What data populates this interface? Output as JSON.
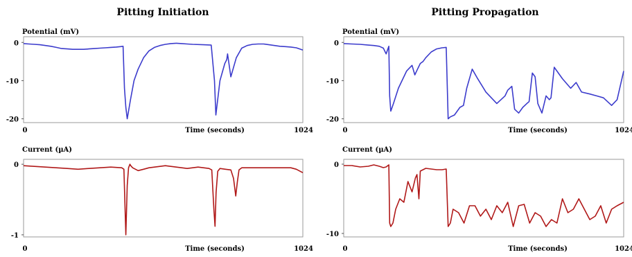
{
  "colors": {
    "potential": "#3b3bcc",
    "current": "#b01818",
    "frame": "#9a9a9a"
  },
  "groups": [
    {
      "title": "Pitting Initiation"
    },
    {
      "title": "Pitting Propagation"
    }
  ],
  "chart_data": [
    {
      "type": "line",
      "group": 0,
      "series_color": "potential",
      "title": "Potential (mV)",
      "xlabel": "Time (seconds)",
      "xlim": [
        0,
        1024
      ],
      "ylim": [
        -21,
        1.5
      ],
      "x_ticks": [
        "0",
        "1024"
      ],
      "y_ticks": [
        {
          "value": 0,
          "label": "0"
        },
        {
          "value": -10,
          "label": "-10"
        },
        {
          "value": -20,
          "label": "-20"
        }
      ],
      "series": [
        {
          "x": [
            0,
            20,
            40,
            60,
            80,
            100,
            120,
            140,
            160,
            180,
            200,
            220,
            240,
            260,
            280,
            300,
            320,
            340,
            355,
            365,
            370,
            375,
            380,
            392,
            405,
            420,
            440,
            460,
            480,
            500,
            520,
            540,
            560,
            580,
            600,
            620,
            660,
            688,
            700,
            705,
            720,
            738,
            745,
            748,
            760,
            780,
            800,
            820,
            840,
            860,
            880,
            900,
            920,
            940,
            960,
            980,
            1000,
            1024
          ],
          "y": [
            -0.3,
            -0.4,
            -0.5,
            -0.6,
            -0.8,
            -1.0,
            -1.3,
            -1.6,
            -1.7,
            -1.8,
            -1.8,
            -1.8,
            -1.7,
            -1.6,
            -1.5,
            -1.4,
            -1.3,
            -1.2,
            -1.1,
            -1.0,
            -12.0,
            -17.0,
            -20.0,
            -15.0,
            -10.0,
            -7.0,
            -4.0,
            -2.2,
            -1.3,
            -0.8,
            -0.5,
            -0.3,
            -0.2,
            -0.3,
            -0.4,
            -0.5,
            -0.6,
            -0.7,
            -10.0,
            -19.0,
            -10.0,
            -5.5,
            -4.5,
            -3.0,
            -9.0,
            -4.0,
            -1.5,
            -0.8,
            -0.5,
            -0.4,
            -0.4,
            -0.6,
            -0.8,
            -1.0,
            -1.1,
            -1.2,
            -1.4,
            -2.0
          ]
        }
      ]
    },
    {
      "type": "line",
      "group": 0,
      "series_color": "current",
      "title": "Current (µA)",
      "xlabel": "Time (seconds)",
      "xlim": [
        0,
        1024
      ],
      "ylim": [
        -1.03,
        0.07
      ],
      "x_ticks": [
        "0",
        "1024"
      ],
      "y_ticks": [
        {
          "value": 0,
          "label": "0"
        },
        {
          "value": -1,
          "label": "-1"
        }
      ],
      "series": [
        {
          "x": [
            0,
            40,
            80,
            120,
            160,
            200,
            240,
            280,
            320,
            360,
            368,
            375,
            380,
            385,
            390,
            393,
            400,
            420,
            440,
            460,
            480,
            500,
            520,
            540,
            560,
            580,
            600,
            620,
            640,
            660,
            680,
            690,
            698,
            702,
            706,
            712,
            720,
            740,
            760,
            770,
            778,
            784,
            790,
            800,
            820,
            840,
            860,
            880,
            900,
            920,
            940,
            960,
            980,
            1000,
            1024
          ],
          "y": [
            -0.02,
            -0.03,
            -0.04,
            -0.05,
            -0.06,
            -0.07,
            -0.06,
            -0.05,
            -0.04,
            -0.05,
            -0.07,
            -1.0,
            -0.3,
            -0.05,
            0.0,
            -0.02,
            -0.05,
            -0.09,
            -0.07,
            -0.05,
            -0.04,
            -0.03,
            -0.02,
            -0.03,
            -0.04,
            -0.05,
            -0.06,
            -0.05,
            -0.04,
            -0.05,
            -0.06,
            -0.08,
            -0.65,
            -0.88,
            -0.4,
            -0.1,
            -0.06,
            -0.07,
            -0.08,
            -0.2,
            -0.45,
            -0.25,
            -0.08,
            -0.05,
            -0.05,
            -0.05,
            -0.05,
            -0.05,
            -0.05,
            -0.05,
            -0.05,
            -0.05,
            -0.05,
            -0.07,
            -0.12
          ]
        }
      ]
    },
    {
      "type": "line",
      "group": 1,
      "series_color": "potential",
      "title": "Potential (mV)",
      "xlabel": "Time (seconds)",
      "xlim": [
        0,
        1024
      ],
      "ylim": [
        -21,
        1.5
      ],
      "x_ticks": [
        "0",
        "1024"
      ],
      "y_ticks": [
        {
          "value": 0,
          "label": "0"
        },
        {
          "value": -10,
          "label": "-10"
        },
        {
          "value": -20,
          "label": "-20"
        }
      ],
      "series": [
        {
          "x": [
            0,
            30,
            60,
            90,
            110,
            130,
            145,
            155,
            165,
            168,
            172,
            182,
            200,
            230,
            250,
            260,
            270,
            280,
            290,
            300,
            320,
            340,
            360,
            375,
            382,
            390,
            405,
            425,
            438,
            450,
            470,
            490,
            520,
            560,
            590,
            600,
            615,
            625,
            640,
            655,
            670,
            678,
            690,
            700,
            710,
            725,
            740,
            752,
            758,
            770,
            800,
            830,
            850,
            870,
            900,
            925,
            950,
            980,
            1000,
            1024
          ],
          "y": [
            -0.3,
            -0.4,
            -0.5,
            -0.7,
            -0.8,
            -1.0,
            -1.5,
            -3.0,
            -1.0,
            -14.0,
            -18.0,
            -16.0,
            -12.0,
            -7.5,
            -6.0,
            -8.5,
            -7.0,
            -5.5,
            -5.0,
            -4.0,
            -2.5,
            -1.7,
            -1.4,
            -1.3,
            -20.0,
            -19.5,
            -19.0,
            -17.0,
            -16.5,
            -12.0,
            -7.0,
            -9.5,
            -13.0,
            -16.0,
            -14.0,
            -12.5,
            -11.5,
            -17.5,
            -18.5,
            -17.0,
            -16.0,
            -15.5,
            -8.0,
            -9.0,
            -16.0,
            -18.5,
            -14.0,
            -15.0,
            -14.5,
            -6.5,
            -9.5,
            -12.0,
            -10.5,
            -13.0,
            -13.5,
            -14.0,
            -14.5,
            -16.5,
            -15.0,
            -7.5
          ]
        }
      ]
    },
    {
      "type": "line",
      "group": 1,
      "series_color": "current",
      "title": "Current (µA)",
      "xlabel": "Time (seconds)",
      "xlim": [
        0,
        1024
      ],
      "ylim": [
        -10.5,
        0.7
      ],
      "x_ticks": [
        "0",
        "1024"
      ],
      "y_ticks": [
        {
          "value": 0,
          "label": "0"
        },
        {
          "value": -10,
          "label": "-10"
        }
      ],
      "series": [
        {
          "x": [
            0,
            30,
            60,
            90,
            110,
            130,
            145,
            155,
            165,
            168,
            172,
            180,
            190,
            205,
            220,
            235,
            250,
            262,
            268,
            275,
            280,
            290,
            300,
            320,
            340,
            360,
            375,
            382,
            390,
            400,
            420,
            440,
            460,
            480,
            500,
            520,
            540,
            560,
            580,
            600,
            620,
            640,
            660,
            680,
            700,
            720,
            740,
            760,
            780,
            800,
            820,
            840,
            860,
            880,
            900,
            920,
            940,
            960,
            980,
            1000,
            1024
          ],
          "y": [
            -0.2,
            -0.2,
            -0.4,
            -0.3,
            -0.1,
            -0.3,
            -0.5,
            -0.4,
            -0.1,
            -8.5,
            -9.0,
            -8.5,
            -6.5,
            -5.0,
            -5.5,
            -2.5,
            -4.0,
            -2.0,
            -1.5,
            -5.0,
            -1.0,
            -0.8,
            -0.6,
            -0.7,
            -0.8,
            -0.8,
            -0.7,
            -9.0,
            -8.5,
            -6.5,
            -7.0,
            -8.5,
            -6.0,
            -6.0,
            -7.5,
            -6.5,
            -8.0,
            -6.0,
            -7.0,
            -5.5,
            -9.0,
            -6.0,
            -5.8,
            -8.5,
            -7.0,
            -7.5,
            -9.0,
            -8.0,
            -8.5,
            -5.0,
            -7.0,
            -6.5,
            -5.0,
            -6.5,
            -8.0,
            -7.5,
            -6.0,
            -8.5,
            -6.5,
            -6.0,
            -5.5
          ]
        }
      ]
    }
  ]
}
